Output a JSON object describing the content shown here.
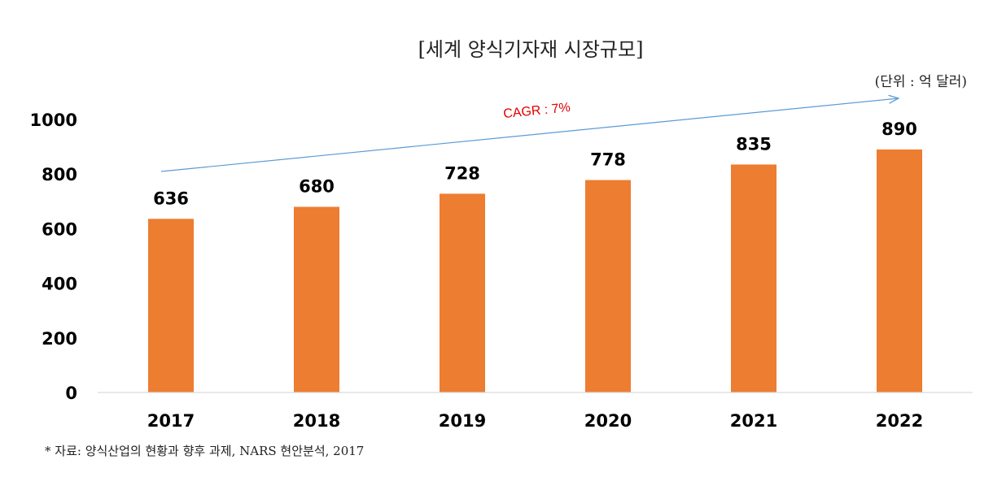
{
  "chart_data": {
    "type": "bar",
    "title": "[세계 양식기자재 시장규모]",
    "unit_note": "(단위 : 억 달러)",
    "categories": [
      "2017",
      "2018",
      "2019",
      "2020",
      "2021",
      "2022"
    ],
    "values": [
      636,
      680,
      728,
      778,
      835,
      890
    ],
    "y_ticks": [
      "0",
      "200",
      "400",
      "600",
      "800",
      "1000"
    ],
    "ylim": [
      0,
      1000
    ],
    "bar_color": "#ed7d31",
    "grid": false,
    "annotation": {
      "text": "CAGR : 7%",
      "color": "#e00000",
      "arrow_color": "#5b9bd5"
    },
    "source": "* 자료: 양식산업의 현황과 향후 과제, NARS 현안분석, 2017"
  }
}
